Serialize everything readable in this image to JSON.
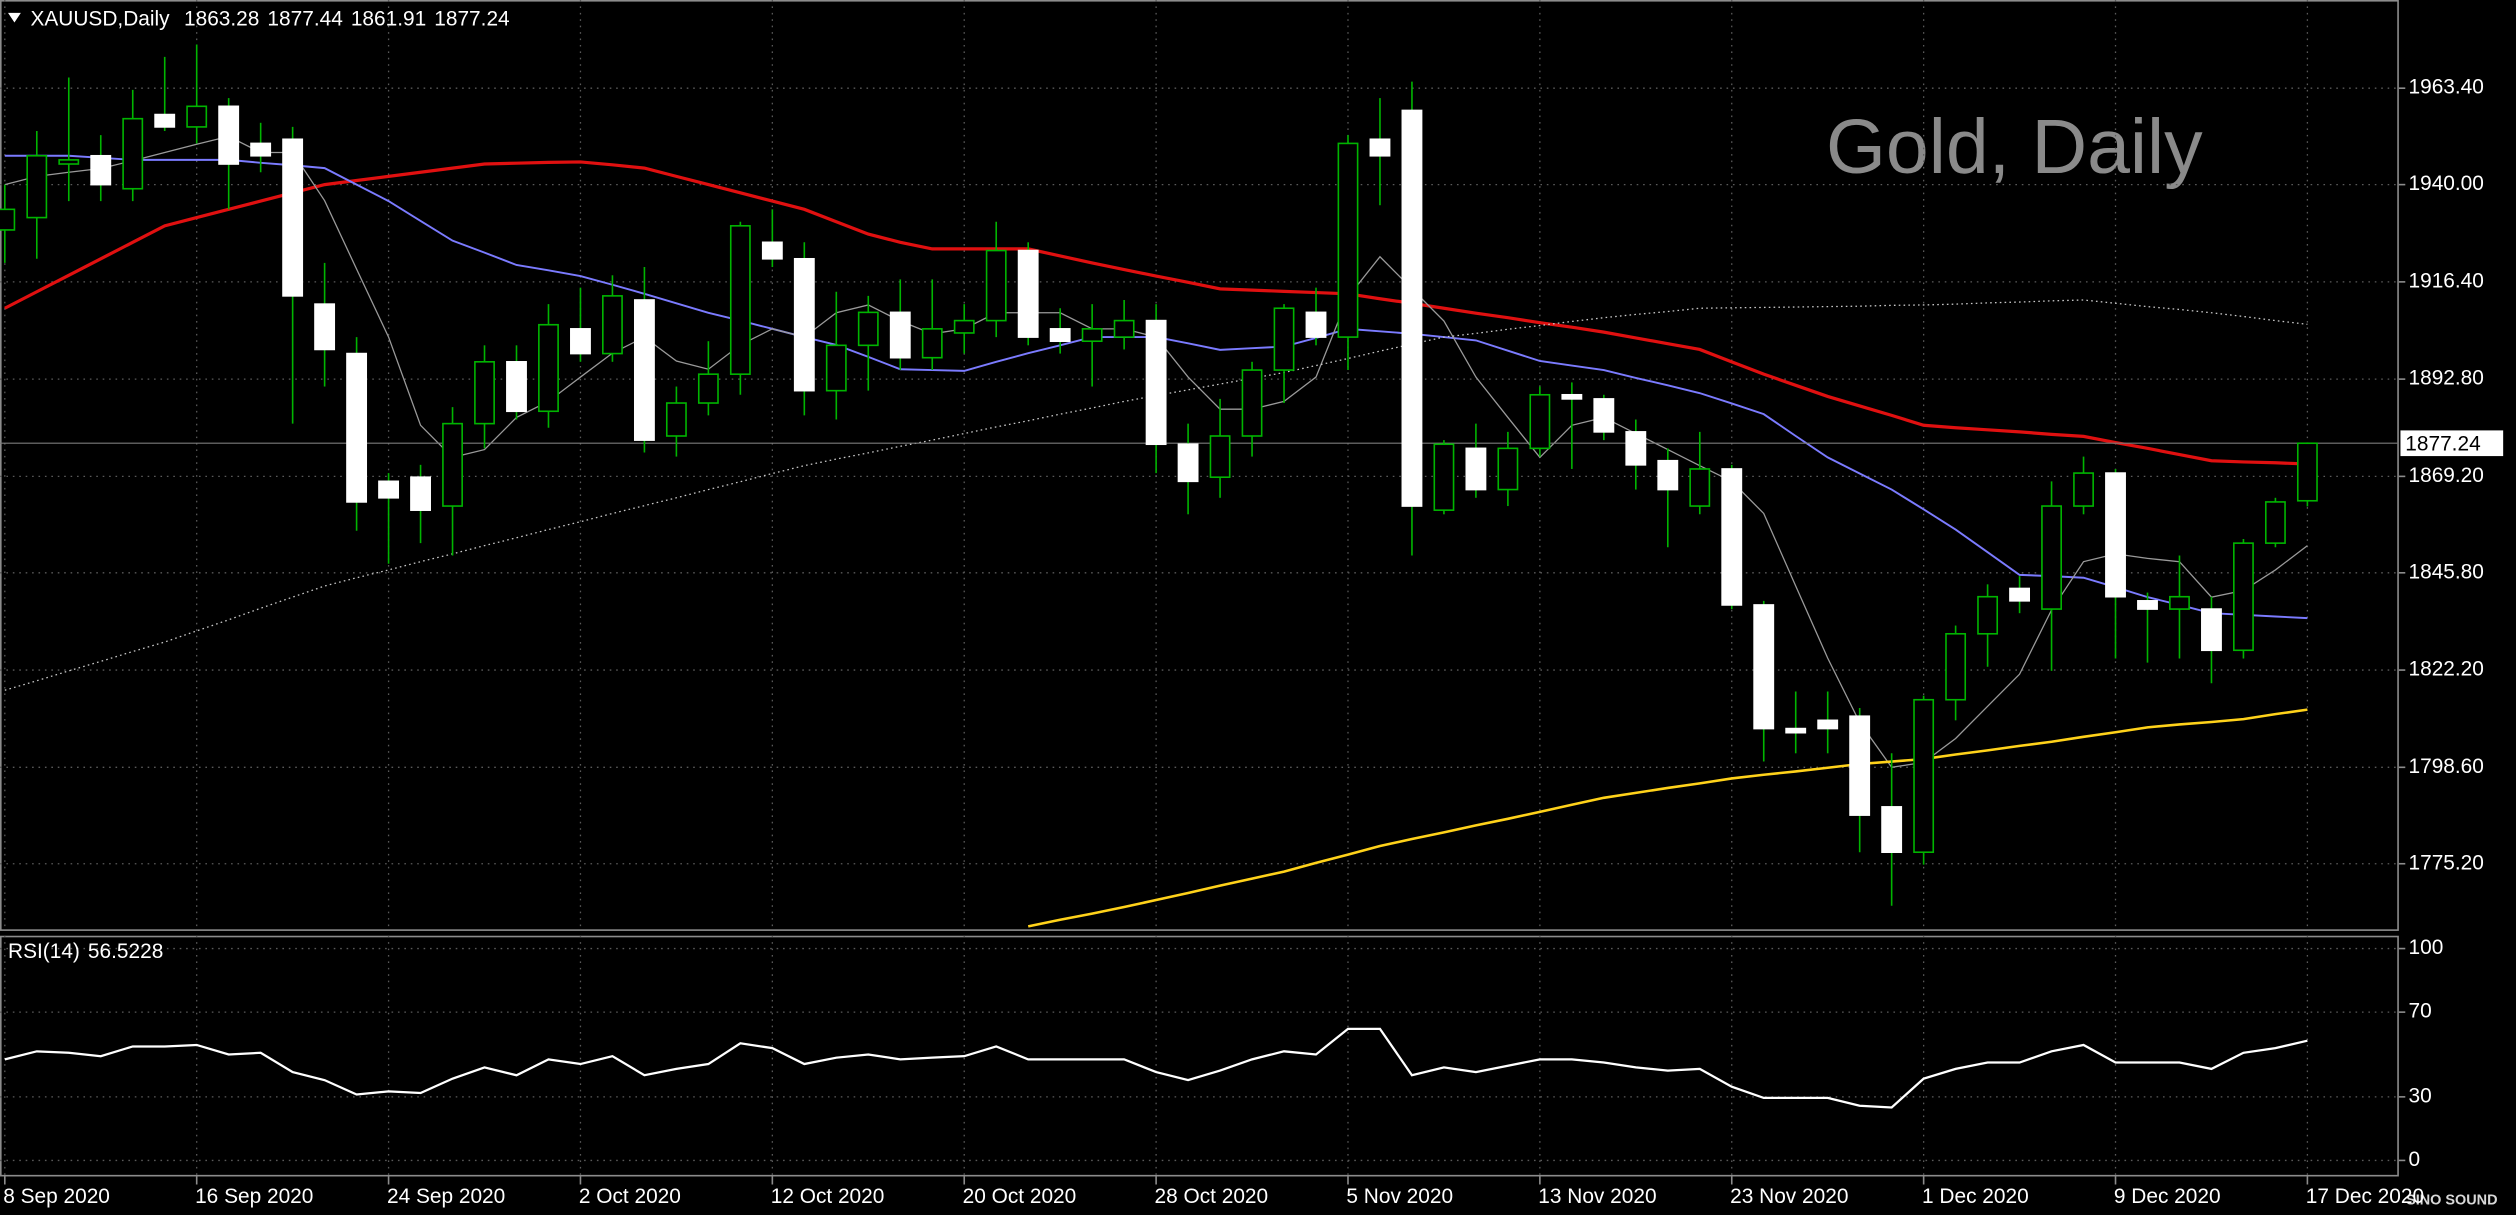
{
  "chart_data": [
    {
      "type": "candlestick",
      "title": "Gold, Daily",
      "symbol": "XAUUSD,Daily",
      "categories": [
        "8 Sep 2020",
        null,
        null,
        null,
        null,
        null,
        "16 Sep 2020",
        null,
        null,
        null,
        null,
        null,
        "24 Sep 2020",
        null,
        null,
        null,
        null,
        null,
        "2 Oct 2020",
        null,
        null,
        null,
        null,
        null,
        "12 Oct 2020",
        null,
        null,
        null,
        null,
        null,
        "20 Oct 2020",
        null,
        null,
        null,
        null,
        null,
        "28 Oct 2020",
        null,
        null,
        null,
        null,
        null,
        "5 Nov 2020",
        null,
        null,
        null,
        null,
        null,
        "13 Nov 2020",
        null,
        null,
        null,
        null,
        null,
        "23 Nov 2020",
        null,
        null,
        null,
        null,
        null,
        "1 Dec 2020",
        null,
        null,
        null,
        null,
        null,
        "9 Dec 2020",
        null,
        null,
        null,
        null,
        null,
        "17 Dec 2020"
      ],
      "open": [
        1929,
        1932,
        1945,
        1947,
        1939,
        1957,
        1954,
        1959,
        1950,
        1951,
        1911,
        1899,
        1868,
        1869,
        1862,
        1882,
        1897,
        1885,
        1905,
        1899,
        1912,
        1879,
        1887,
        1894,
        1926,
        1922,
        1890,
        1901,
        1909,
        1898,
        1904,
        1907,
        1924,
        1905,
        1902,
        1903,
        1907,
        1877,
        1869,
        1879,
        1895,
        1909,
        1903,
        1951,
        1958,
        1861,
        1876,
        1866,
        1876,
        1889,
        1888,
        1880,
        1873,
        1862,
        1871,
        1838,
        1808,
        1810,
        1811,
        1789,
        1778,
        1815,
        1831,
        1842,
        1837,
        1862,
        1870,
        1839,
        1837,
        1837,
        1827,
        1853,
        1863.28
      ],
      "high": [
        1940,
        1953,
        1966,
        1952,
        1963,
        1971,
        1974,
        1961,
        1955,
        1954,
        1921,
        1903,
        1870,
        1872,
        1886,
        1901,
        1901,
        1911,
        1915,
        1918,
        1920,
        1891,
        1902,
        1931,
        1934,
        1926,
        1914,
        1913,
        1917,
        1917,
        1911,
        1931,
        1926,
        1910,
        1911,
        1912,
        1911,
        1882,
        1888,
        1897,
        1911,
        1915,
        1952,
        1961,
        1965,
        1878,
        1882,
        1880,
        1891,
        1892,
        1889,
        1883,
        1876,
        1880,
        1872,
        1839,
        1817,
        1817,
        1813,
        1802,
        1816,
        1833,
        1843,
        1845,
        1868,
        1874,
        1871,
        1841,
        1850,
        1840,
        1854,
        1864,
        1877.44
      ],
      "low": [
        1921,
        1922,
        1936,
        1936,
        1936,
        1953,
        1950,
        1934,
        1943,
        1882,
        1891,
        1856,
        1848,
        1853,
        1850,
        1876,
        1883,
        1881,
        1897,
        1897,
        1875,
        1874,
        1884,
        1889,
        1920,
        1884,
        1883,
        1890,
        1895,
        1895,
        1899,
        1903,
        1901,
        1899,
        1891,
        1900,
        1870,
        1860,
        1864,
        1874,
        1887,
        1901,
        1895,
        1935,
        1850,
        1860,
        1864,
        1862,
        1874,
        1871,
        1878,
        1866,
        1852,
        1860,
        1837,
        1800,
        1802,
        1802,
        1778,
        1765,
        1775,
        1810,
        1823,
        1836,
        1822,
        1860,
        1825,
        1824,
        1825,
        1819,
        1825,
        1852,
        1861.91
      ],
      "close": [
        1934,
        1947,
        1946,
        1940,
        1956,
        1954,
        1959,
        1945,
        1947,
        1913,
        1900,
        1863,
        1864,
        1861,
        1882,
        1897,
        1885,
        1906,
        1899,
        1913,
        1878,
        1887,
        1894,
        1930,
        1922,
        1890,
        1901,
        1909,
        1898,
        1905,
        1907,
        1924,
        1903,
        1902,
        1905,
        1907,
        1877,
        1868,
        1879,
        1895,
        1910,
        1903,
        1950,
        1947,
        1862,
        1877,
        1866,
        1876,
        1889,
        1888,
        1880,
        1872,
        1866,
        1871,
        1838,
        1808,
        1807,
        1808,
        1787,
        1778,
        1815,
        1831,
        1840,
        1839,
        1862,
        1870,
        1840,
        1837,
        1840,
        1827,
        1853,
        1863,
        1877.24
      ],
      "up_color": "#000000",
      "down_color": "#ffffff",
      "wick_color": "#00b400",
      "series": [
        {
          "color": "#e01010",
          "values": [
            1910,
            1914,
            1918,
            1922,
            1926,
            1930,
            1932,
            1934,
            1936,
            1938,
            1940,
            1941,
            1942,
            1943,
            1944,
            1945,
            1945.2,
            1945.4,
            1945.5,
            1944.8,
            1944,
            1942,
            1940,
            1938,
            1936,
            1934,
            1931,
            1928,
            1926,
            1924.4,
            1924.4,
            1924.4,
            1924.4,
            1922.7,
            1921,
            1919.4,
            1917.8,
            1916.3,
            1914.7,
            1914.4,
            1914.1,
            1913.8,
            1913.5,
            1912.3,
            1911.2,
            1910,
            1908.8,
            1907.7,
            1906.5,
            1905.4,
            1904.2,
            1902.8,
            1901.4,
            1900,
            1897,
            1894,
            1891.3,
            1888.6,
            1886.3,
            1884,
            1881.6,
            1881,
            1880.5,
            1880,
            1879.4,
            1878.9,
            1877.4,
            1876,
            1874.5,
            1873,
            1872.7,
            1872.5,
            1872.2
          ]
        },
        {
          "color": "#7b7bff",
          "values": [
            1947,
            1947,
            1947,
            1946.5,
            1946,
            1946,
            1946,
            1946,
            1945.3,
            1944.7,
            1944,
            1940,
            1936,
            1931.2,
            1926.4,
            1923.5,
            1920.5,
            1919.2,
            1917.8,
            1915.7,
            1913.5,
            1911.2,
            1908.9,
            1907,
            1905,
            1903,
            1901.1,
            1898.2,
            1895.2,
            1895,
            1894.8,
            1897,
            1899.1,
            1901,
            1903,
            1903,
            1903,
            1901.5,
            1899.9,
            1900.3,
            1900.7,
            1902.8,
            1905,
            1904.4,
            1903.8,
            1903,
            1902.2,
            1899.7,
            1897.2,
            1896.1,
            1895,
            1893.1,
            1891.3,
            1889.4,
            1886.9,
            1884.3,
            1879,
            1873.8,
            1869.9,
            1866,
            1861.2,
            1856.3,
            1850.8,
            1845.3,
            1845,
            1844.6,
            1842.3,
            1839.9,
            1838,
            1836,
            1835.6,
            1835.2,
            1834.8
          ]
        },
        {
          "color": "#9a9a9a",
          "values": [
            1940,
            1942,
            1943,
            1943.9,
            1945.8,
            1947.8,
            1949.8,
            1951.7,
            1947.8,
            1947.8,
            1936.1,
            1919.5,
            1903,
            1881.6,
            1873.8,
            1875.7,
            1883.5,
            1887.4,
            1893.3,
            1899.1,
            1903,
            1897.2,
            1895.2,
            1901.1,
            1905,
            1903,
            1908.9,
            1910.8,
            1906.9,
            1903.8,
            1905,
            1908.9,
            1908.9,
            1908.9,
            1905,
            1905,
            1903,
            1893.3,
            1885.5,
            1885.5,
            1887.4,
            1893.3,
            1912.7,
            1922.5,
            1914.7,
            1906.9,
            1893.3,
            1883.5,
            1873.8,
            1881.6,
            1883.5,
            1879.6,
            1875.7,
            1871.8,
            1868,
            1860.2,
            1842.6,
            1825.1,
            1809.5,
            1798.6,
            1799.8,
            1805.6,
            1813.4,
            1821.2,
            1836.8,
            1848.5,
            1850.4,
            1849.3,
            1848.5,
            1839.9,
            1841.5,
            1846.5,
            1852.4
          ]
        },
        {
          "color": "#c8c8c8",
          "style": "dotted",
          "values": [
            1817.3,
            1819.6,
            1822,
            1824.3,
            1826.7,
            1829,
            1831.7,
            1834.4,
            1837.2,
            1839.9,
            1842.6,
            1844.6,
            1846.5,
            1848.5,
            1850.4,
            1852.4,
            1854.3,
            1856.3,
            1858.2,
            1860.2,
            1862.1,
            1864,
            1866,
            1867.9,
            1869.9,
            1871.8,
            1873.4,
            1874.9,
            1876.5,
            1878,
            1879.6,
            1881.2,
            1882.7,
            1884.3,
            1885.8,
            1887.4,
            1888.8,
            1890.2,
            1891.6,
            1893,
            1894.4,
            1896.1,
            1897.8,
            1899.6,
            1901.3,
            1903,
            1903.9,
            1904.9,
            1905.8,
            1906.8,
            1907.7,
            1908.5,
            1909.2,
            1910,
            1910.1,
            1910.2,
            1910.3,
            1910.4,
            1910.5,
            1910.7,
            1910.8,
            1911,
            1911.3,
            1911.5,
            1911.8,
            1912,
            1911.2,
            1910.4,
            1909.7,
            1908.9,
            1908,
            1907,
            1906.1
          ]
        },
        {
          "color": "#ffd21a",
          "values": [
            null,
            null,
            null,
            null,
            null,
            null,
            null,
            null,
            null,
            null,
            null,
            null,
            null,
            null,
            null,
            null,
            null,
            null,
            null,
            null,
            null,
            null,
            null,
            null,
            null,
            null,
            null,
            null,
            null,
            null,
            null,
            null,
            1760,
            1761.6,
            1763.1,
            1764.7,
            1766.4,
            1768.1,
            1769.9,
            1771.6,
            1773.3,
            1775.4,
            1777.4,
            1779.5,
            1781.2,
            1782.8,
            1784.5,
            1786.1,
            1787.8,
            1789.5,
            1791.2,
            1792.4,
            1793.6,
            1794.7,
            1795.9,
            1796.8,
            1797.6,
            1798.5,
            1799.4,
            1800,
            1800.6,
            1801.7,
            1802.7,
            1803.8,
            1804.8,
            1806,
            1807.1,
            1808.3,
            1809,
            1809.6,
            1810.3,
            1811.5,
            1812.6
          ]
        }
      ],
      "ylim": [
        1758.9,
        1984.8
      ],
      "yticks": [
        {
          "value": 1963.4,
          "label": "1963.40"
        },
        {
          "value": 1940,
          "label": "1940.00"
        },
        {
          "value": 1916.4,
          "label": "1916.40"
        },
        {
          "value": 1892.8,
          "label": "1892.80"
        },
        {
          "value": 1869.2,
          "label": "1869.20"
        },
        {
          "value": 1845.8,
          "label": "1845.80"
        },
        {
          "value": 1822.2,
          "label": "1822.20"
        },
        {
          "value": 1798.6,
          "label": "1798.60"
        },
        {
          "value": 1775.2,
          "label": "1775.20"
        }
      ],
      "grid": true,
      "logo": "SINO SOUND"
    },
    {
      "type": "line",
      "title": "RSI(14)",
      "color": "#ffffff",
      "values": [
        47.7,
        51.5,
        50.8,
        49.2,
        53.8,
        53.8,
        54.5,
        50,
        50.8,
        41.7,
        37.9,
        31.1,
        32.6,
        31.8,
        38.6,
        43.9,
        40.2,
        47.7,
        45.5,
        49.2,
        40.2,
        43.2,
        45.5,
        55.3,
        53,
        45.5,
        48.5,
        50,
        47.7,
        48.5,
        49.2,
        53.8,
        47.7,
        47.7,
        47.7,
        47.7,
        41.7,
        37.9,
        42.4,
        47.7,
        51.5,
        50,
        62.1,
        62.1,
        40.2,
        43.9,
        41.7,
        44.7,
        47.7,
        47.7,
        46.2,
        43.9,
        42.4,
        43.2,
        34.8,
        29.5,
        29.5,
        29.5,
        25.8,
        25,
        38.6,
        43.2,
        46.2,
        46.2,
        51.5,
        54.5,
        46.2,
        46.2,
        46.2,
        43.2,
        50.8,
        53,
        56.5228
      ],
      "ylim": [
        -7.58,
        106.06
      ],
      "yticks": [
        100,
        70,
        30,
        0
      ],
      "grid": true
    }
  ]
}
